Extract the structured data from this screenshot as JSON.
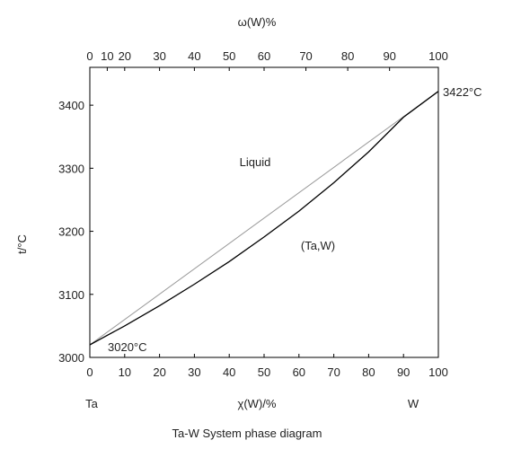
{
  "chart_data": {
    "type": "line",
    "title": "Ta-W System phase diagram",
    "xlabel_bottom": "χ(W)/%",
    "xlabel_top": "ω(W)%",
    "ylabel": "t/°C",
    "xlim": [
      0,
      100
    ],
    "ylim": [
      3000,
      3460
    ],
    "x_ticks": [
      0,
      10,
      20,
      30,
      40,
      50,
      60,
      70,
      80,
      90,
      100
    ],
    "top_ticks": [
      0,
      10,
      20,
      30,
      40,
      50,
      60,
      70,
      80,
      90,
      100
    ],
    "top_tick_positions_chi": [
      0,
      5,
      10,
      20,
      30,
      40,
      50,
      62,
      74,
      86,
      100
    ],
    "y_ticks": [
      3000,
      3100,
      3200,
      3300,
      3400
    ],
    "grid": false,
    "series": [
      {
        "role": "liquidus",
        "color": "#999999",
        "x": [
          0,
          100
        ],
        "y": [
          3020,
          3422
        ]
      },
      {
        "role": "solidus",
        "color": "#000000",
        "x": [
          0,
          10,
          20,
          30,
          40,
          50,
          60,
          70,
          80,
          90,
          100
        ],
        "y": [
          3020,
          3050,
          3082,
          3116,
          3152,
          3191,
          3232,
          3277,
          3326,
          3381,
          3422
        ]
      }
    ],
    "annotations": {
      "liquid": "Liquid",
      "solid": "(Ta,W)",
      "melt_ta": "3020°C",
      "melt_w": "3422°C",
      "end_left": "Ta",
      "end_right": "W"
    }
  }
}
